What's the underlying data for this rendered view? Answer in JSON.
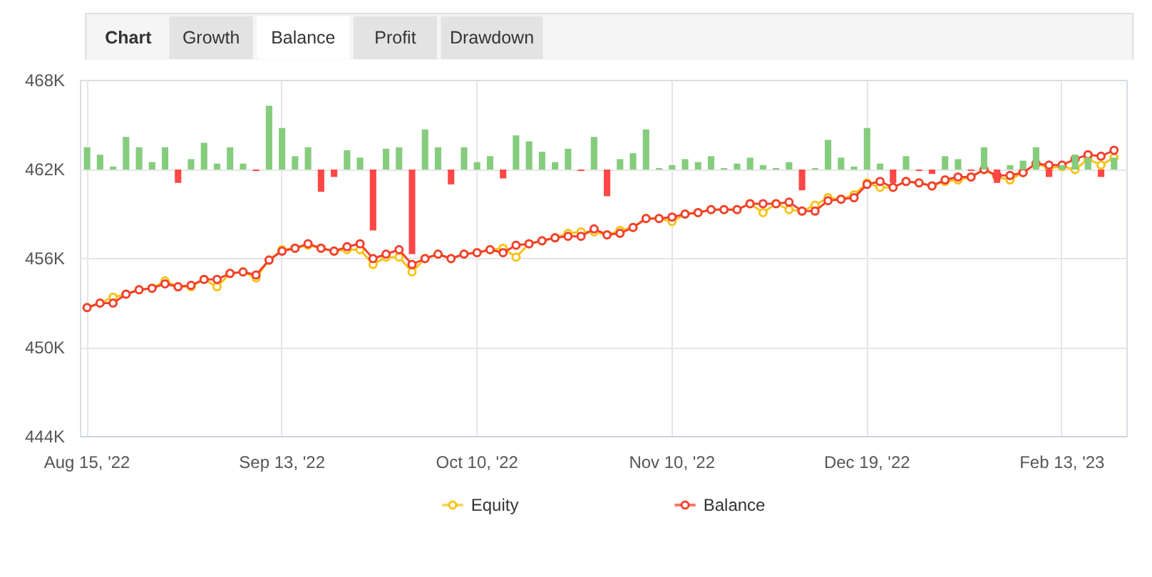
{
  "chart_data": {
    "type": "line",
    "annotations": [
      "Chart",
      "Growth",
      "Balance",
      "Profit",
      "Drawdown"
    ],
    "categories": [
      "Aug 15, '22",
      null,
      null,
      null,
      null,
      null,
      null,
      null,
      null,
      null,
      null,
      null,
      null,
      null,
      null,
      "Sep 13, '22",
      null,
      null,
      null,
      null,
      null,
      null,
      null,
      null,
      null,
      null,
      null,
      null,
      null,
      null,
      "Oct 10, '22",
      null,
      null,
      null,
      null,
      null,
      null,
      null,
      null,
      null,
      null,
      null,
      null,
      null,
      null,
      "Nov 10, '22",
      null,
      null,
      null,
      null,
      null,
      null,
      null,
      null,
      null,
      null,
      null,
      null,
      null,
      null,
      "Dec 19, '22",
      null,
      null,
      null,
      null,
      null,
      null,
      null,
      null,
      null,
      null,
      null,
      null,
      null,
      null,
      "Feb 13, '23",
      null,
      null,
      null,
      null
    ],
    "ylim": [
      444000,
      468000
    ],
    "yticks": [
      {
        "value": 444000,
        "label": "444K"
      },
      {
        "value": 450000,
        "label": "450K"
      },
      {
        "value": 456000,
        "label": "456K"
      },
      {
        "value": 462000,
        "label": "462K"
      },
      {
        "value": 468000,
        "label": "468K"
      }
    ],
    "grid": true,
    "legend": "bottom",
    "marker": "circle",
    "line_style": "solid",
    "series": [
      {
        "type": "bar",
        "base": [
          462000,
          462000,
          462000,
          462000,
          462000,
          462000,
          462000,
          462000,
          462000,
          462000,
          462000,
          462000,
          462000,
          462000,
          462000,
          462000,
          462000,
          462000,
          462000,
          462000,
          462000,
          462000,
          462000,
          462000,
          462000,
          462000,
          462000,
          462000,
          462000,
          462000,
          462000,
          462000,
          462000,
          462000,
          462000,
          462000,
          462000,
          462000,
          462000,
          462000,
          462000,
          462000,
          462000,
          462000,
          462000,
          462000,
          462000,
          462000,
          462000,
          462000,
          462000,
          462000,
          462000,
          462000,
          462000,
          462000,
          462000,
          462000,
          462000,
          462000,
          462000,
          462000,
          462000,
          462000,
          462000,
          462000,
          462000,
          462000,
          462000,
          462000,
          462000,
          462000,
          462000,
          462000,
          462000,
          462000,
          462000,
          462000,
          462000,
          462000
        ],
        "values": [
          1500,
          1000,
          200,
          2200,
          1500,
          500,
          1500,
          -900,
          700,
          1800,
          400,
          1500,
          400,
          -100,
          4300,
          2800,
          900,
          1500,
          -1500,
          -500,
          1300,
          800,
          -4100,
          1400,
          1500,
          -5700,
          2700,
          1500,
          -1000,
          1500,
          500,
          900,
          -600,
          2300,
          1900,
          1200,
          500,
          1400,
          -100,
          2200,
          -1800,
          700,
          1100,
          2700,
          100,
          300,
          700,
          500,
          900,
          100,
          400,
          800,
          300,
          100,
          500,
          -1400,
          100,
          2000,
          800,
          200,
          2800,
          400,
          -900,
          900,
          -100,
          -300,
          900,
          700,
          -100,
          1500,
          -900,
          300,
          600,
          1500,
          -500,
          300,
          1000,
          800,
          -500,
          800
        ],
        "colors": [
          "#85cc7d",
          "#85cc7d",
          "#85cc7d",
          "#85cc7d",
          "#85cc7d",
          "#85cc7d",
          "#85cc7d",
          "#ff4747",
          "#85cc7d",
          "#85cc7d",
          "#85cc7d",
          "#85cc7d",
          "#85cc7d",
          "#ff4747",
          "#85cc7d",
          "#85cc7d",
          "#85cc7d",
          "#85cc7d",
          "#ff4747",
          "#ff4747",
          "#85cc7d",
          "#85cc7d",
          "#ff4747",
          "#85cc7d",
          "#85cc7d",
          "#ff4747",
          "#85cc7d",
          "#85cc7d",
          "#ff4747",
          "#85cc7d",
          "#85cc7d",
          "#85cc7d",
          "#ff4747",
          "#85cc7d",
          "#85cc7d",
          "#85cc7d",
          "#85cc7d",
          "#85cc7d",
          "#ff4747",
          "#85cc7d",
          "#ff4747",
          "#85cc7d",
          "#85cc7d",
          "#85cc7d",
          "#85cc7d",
          "#85cc7d",
          "#85cc7d",
          "#85cc7d",
          "#85cc7d",
          "#85cc7d",
          "#85cc7d",
          "#85cc7d",
          "#85cc7d",
          "#85cc7d",
          "#85cc7d",
          "#ff4747",
          "#85cc7d",
          "#85cc7d",
          "#85cc7d",
          "#85cc7d",
          "#85cc7d",
          "#85cc7d",
          "#ff4747",
          "#85cc7d",
          "#ff4747",
          "#ff4747",
          "#85cc7d",
          "#85cc7d",
          "#ff4747",
          "#85cc7d",
          "#ff4747",
          "#85cc7d",
          "#85cc7d",
          "#85cc7d",
          "#ff4747",
          "#85cc7d",
          "#85cc7d",
          "#85cc7d",
          "#ff4747",
          "#85cc7d"
        ]
      },
      {
        "name": "Equity",
        "color": "#f7c31a",
        "values": [
          452700,
          453000,
          453400,
          453600,
          453900,
          454000,
          454500,
          454100,
          454100,
          454600,
          454100,
          455000,
          455100,
          454700,
          455900,
          456600,
          456700,
          456900,
          456700,
          456500,
          456600,
          456600,
          455600,
          456100,
          456100,
          455100,
          456000,
          456300,
          456000,
          456300,
          456400,
          456600,
          456700,
          456100,
          457000,
          457200,
          457400,
          457700,
          457800,
          457800,
          457600,
          457900,
          458100,
          458700,
          458700,
          458500,
          459000,
          459100,
          459300,
          459300,
          459300,
          459700,
          459100,
          459700,
          459300,
          459200,
          459600,
          460100,
          460000,
          460300,
          461100,
          460800,
          460800,
          461200,
          461100,
          460900,
          461200,
          461300,
          461500,
          462000,
          461500,
          461300,
          461800,
          462400,
          462100,
          462200,
          462000,
          462700,
          462300,
          462800
        ]
      },
      {
        "name": "Balance",
        "color": "#f2412f",
        "values": [
          452700,
          453000,
          453000,
          453600,
          453900,
          454000,
          454300,
          454100,
          454200,
          454600,
          454600,
          455000,
          455100,
          454900,
          455900,
          456500,
          456700,
          457000,
          456700,
          456500,
          456800,
          457000,
          456000,
          456300,
          456600,
          455600,
          456000,
          456300,
          456000,
          456300,
          456400,
          456600,
          456400,
          456900,
          457000,
          457200,
          457400,
          457500,
          457500,
          458000,
          457600,
          457700,
          458100,
          458700,
          458700,
          458800,
          459000,
          459100,
          459300,
          459300,
          459300,
          459700,
          459700,
          459700,
          459800,
          459200,
          459200,
          459900,
          460000,
          460100,
          461000,
          461200,
          460800,
          461200,
          461100,
          460900,
          461300,
          461500,
          461500,
          462000,
          461600,
          461600,
          461800,
          462400,
          462300,
          462300,
          462700,
          463000,
          462900,
          463300
        ]
      }
    ]
  }
}
